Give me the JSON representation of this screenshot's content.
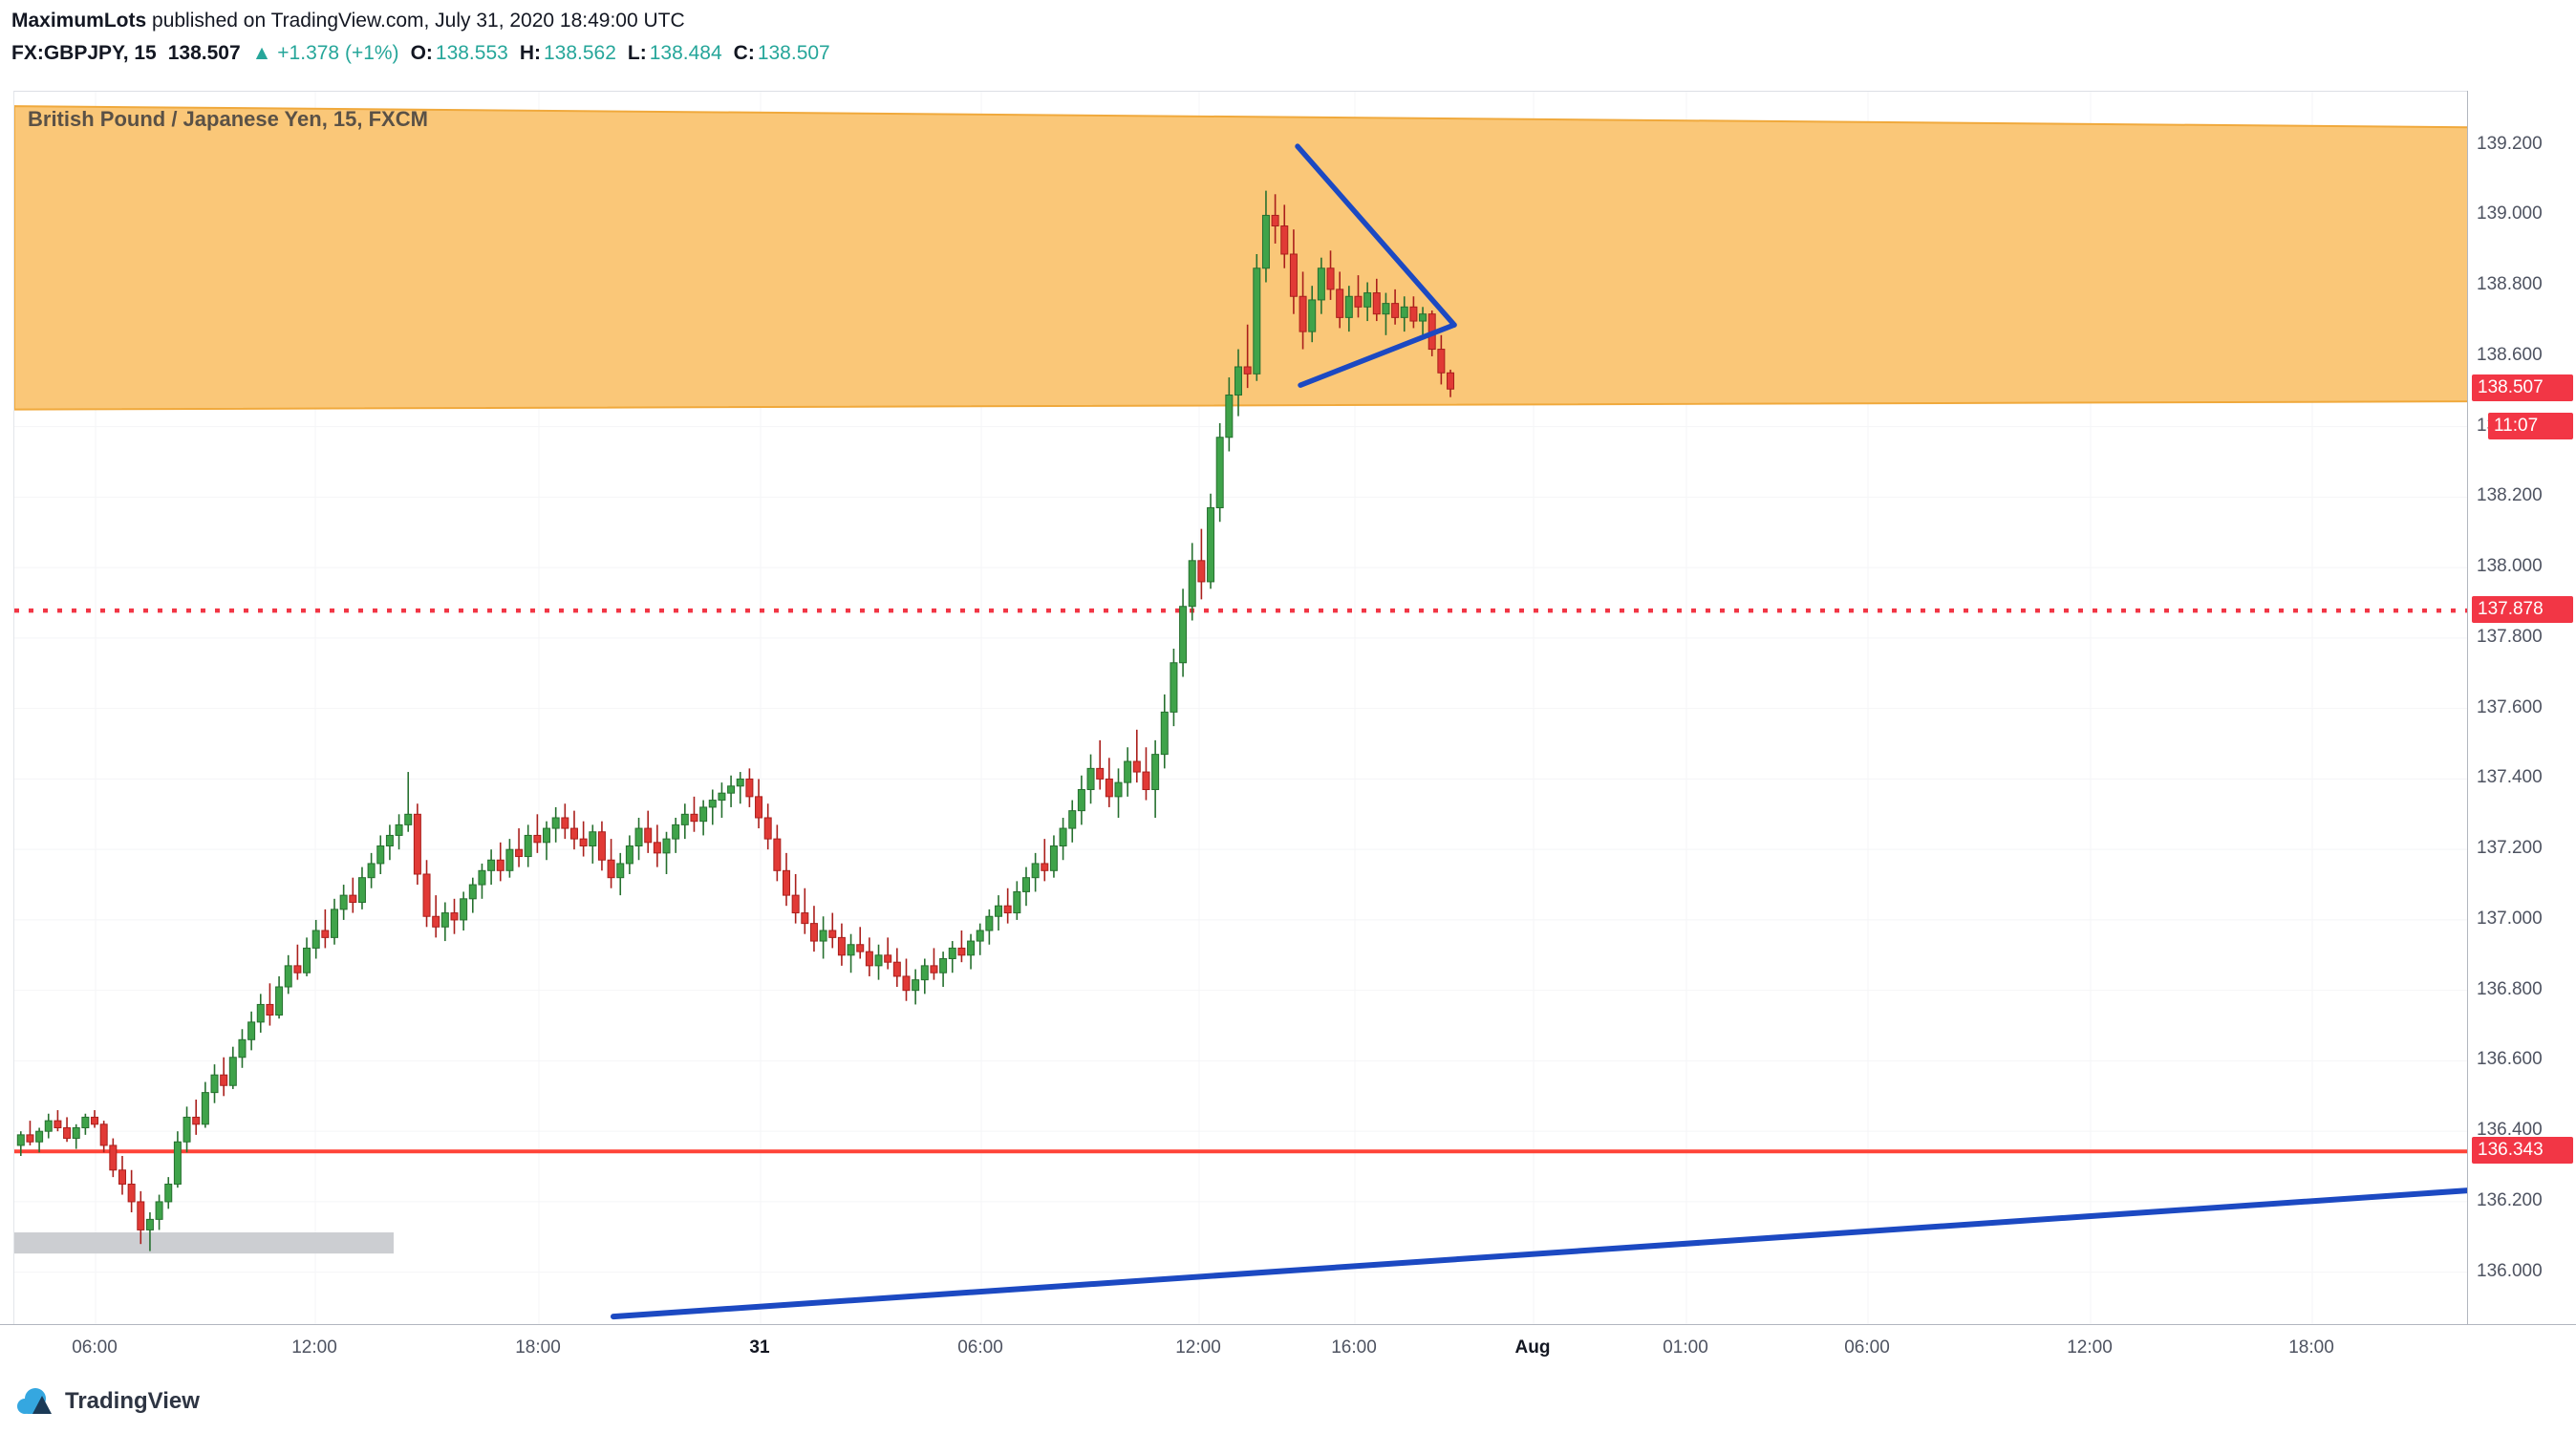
{
  "header": {
    "author": "MaximumLots",
    "published_suffix": " published on TradingView.com, July 31, 2020 18:49:00 UTC"
  },
  "legend": {
    "symbol": "FX:GBPJPY, 15",
    "last": "138.507",
    "direction_arrow": "▲",
    "change": "+1.378 (+1%)",
    "ohlc": [
      {
        "label": "O:",
        "value": "138.553"
      },
      {
        "label": "H:",
        "value": "138.562"
      },
      {
        "label": "L:",
        "value": "138.484"
      },
      {
        "label": "C:",
        "value": "138.507"
      }
    ]
  },
  "watermark": "British Pound / Japanese Yen, 15, FXCM",
  "footer": {
    "brand": "TradingView"
  },
  "colors": {
    "up": "#3fa34a",
    "up_border": "#26702f",
    "down": "#e13a36",
    "down_border": "#aa1f1c",
    "red": "#f23645",
    "red_solid": "#ff4438",
    "blue": "#1c49c2",
    "zone_fill": "#fac778",
    "zone_edge": "#f0a93c",
    "gray_box": "#c7c9cd",
    "grid": "#f4f5f7",
    "label_bg": "#f23645"
  },
  "price_axis": {
    "last_price_label": "138.507",
    "last_price_value": 138.507,
    "countdown": "11:07",
    "countdown_anchor_price": 138.4,
    "levels": [
      {
        "label": "137.878",
        "price": 137.878,
        "style": "dotted"
      },
      {
        "label": "136.343",
        "price": 136.343,
        "style": "solid"
      }
    ],
    "ticks": [
      {
        "label": "139.200",
        "price": 139.2
      },
      {
        "label": "139.000",
        "price": 139.0
      },
      {
        "label": "138.800",
        "price": 138.8
      },
      {
        "label": "138.600",
        "price": 138.6
      },
      {
        "label": "138.400",
        "price": 138.4
      },
      {
        "label": "138.200",
        "price": 138.2
      },
      {
        "label": "138.000",
        "price": 138.0
      },
      {
        "label": "137.800",
        "price": 137.8
      },
      {
        "label": "137.600",
        "price": 137.6
      },
      {
        "label": "137.400",
        "price": 137.4
      },
      {
        "label": "137.200",
        "price": 137.2
      },
      {
        "label": "137.000",
        "price": 137.0
      },
      {
        "label": "136.800",
        "price": 136.8
      },
      {
        "label": "136.600",
        "price": 136.6
      },
      {
        "label": "136.400",
        "price": 136.4
      },
      {
        "label": "136.200",
        "price": 136.2
      },
      {
        "label": "136.000",
        "price": 136.0
      }
    ]
  },
  "time_axis": {
    "ticks": [
      {
        "label": "06:00",
        "x": 99,
        "bold": false
      },
      {
        "label": "12:00",
        "x": 329,
        "bold": false
      },
      {
        "label": "18:00",
        "x": 563,
        "bold": false
      },
      {
        "label": "31",
        "x": 795,
        "bold": true
      },
      {
        "label": "06:00",
        "x": 1026,
        "bold": false
      },
      {
        "label": "12:00",
        "x": 1254,
        "bold": false
      },
      {
        "label": "16:00",
        "x": 1417,
        "bold": false
      },
      {
        "label": "Aug",
        "x": 1604,
        "bold": true
      },
      {
        "label": "01:00",
        "x": 1764,
        "bold": false
      },
      {
        "label": "06:00",
        "x": 1954,
        "bold": false
      },
      {
        "label": "12:00",
        "x": 2187,
        "bold": false
      },
      {
        "label": "18:00",
        "x": 2419,
        "bold": false
      }
    ]
  },
  "chart_data": {
    "type": "candlestick",
    "title": "British Pound / Japanese Yen, 15, FXCM",
    "symbol": "FX:GBPJPY",
    "interval": "15 minutes",
    "price_range_top": 139.351,
    "price_range_bottom": 135.85,
    "ylim": [
      135.85,
      139.351
    ],
    "grid": true,
    "legend_position": "top-left",
    "layout": {
      "x0": 3.3,
      "step": 9.653,
      "body_width": 7
    },
    "candles": [
      [
        136.36,
        136.4,
        136.33,
        136.39
      ],
      [
        136.39,
        136.43,
        136.36,
        136.37
      ],
      [
        136.37,
        136.41,
        136.34,
        136.4
      ],
      [
        136.4,
        136.45,
        136.38,
        136.43
      ],
      [
        136.43,
        136.46,
        136.4,
        136.41
      ],
      [
        136.41,
        136.44,
        136.37,
        136.38
      ],
      [
        136.38,
        136.42,
        136.35,
        136.41
      ],
      [
        136.41,
        136.45,
        136.39,
        136.44
      ],
      [
        136.44,
        136.46,
        136.41,
        136.42
      ],
      [
        136.42,
        136.43,
        136.34,
        136.36
      ],
      [
        136.36,
        136.38,
        136.27,
        136.29
      ],
      [
        136.29,
        136.33,
        136.22,
        136.25
      ],
      [
        136.25,
        136.29,
        136.17,
        136.2
      ],
      [
        136.2,
        136.23,
        136.08,
        136.12
      ],
      [
        136.12,
        136.17,
        136.06,
        136.15
      ],
      [
        136.15,
        136.22,
        136.12,
        136.2
      ],
      [
        136.2,
        136.27,
        136.18,
        136.25
      ],
      [
        136.25,
        136.4,
        136.24,
        136.37
      ],
      [
        136.37,
        136.47,
        136.34,
        136.44
      ],
      [
        136.44,
        136.49,
        136.39,
        136.42
      ],
      [
        136.42,
        136.54,
        136.41,
        136.51
      ],
      [
        136.51,
        136.59,
        136.48,
        136.56
      ],
      [
        136.56,
        136.61,
        136.5,
        136.53
      ],
      [
        136.53,
        136.64,
        136.52,
        136.61
      ],
      [
        136.61,
        136.69,
        136.58,
        136.66
      ],
      [
        136.66,
        136.74,
        136.63,
        136.71
      ],
      [
        136.71,
        136.79,
        136.68,
        136.76
      ],
      [
        136.76,
        136.82,
        136.7,
        136.73
      ],
      [
        136.73,
        136.84,
        136.72,
        136.81
      ],
      [
        136.81,
        136.9,
        136.79,
        136.87
      ],
      [
        136.87,
        136.93,
        136.83,
        136.85
      ],
      [
        136.85,
        136.95,
        136.84,
        136.92
      ],
      [
        136.92,
        137.0,
        136.89,
        136.97
      ],
      [
        136.97,
        137.03,
        136.92,
        136.95
      ],
      [
        136.95,
        137.06,
        136.93,
        137.03
      ],
      [
        137.03,
        137.1,
        137.0,
        137.07
      ],
      [
        137.07,
        137.12,
        137.02,
        137.05
      ],
      [
        137.05,
        137.15,
        137.03,
        137.12
      ],
      [
        137.12,
        137.19,
        137.09,
        137.16
      ],
      [
        137.16,
        137.24,
        137.13,
        137.21
      ],
      [
        137.21,
        137.27,
        137.17,
        137.24
      ],
      [
        137.24,
        137.3,
        137.2,
        137.27
      ],
      [
        137.27,
        137.42,
        137.25,
        137.3
      ],
      [
        137.3,
        137.33,
        137.1,
        137.13
      ],
      [
        137.13,
        137.17,
        136.98,
        137.01
      ],
      [
        137.01,
        137.07,
        136.95,
        136.98
      ],
      [
        136.98,
        137.05,
        136.94,
        137.02
      ],
      [
        137.02,
        137.06,
        136.96,
        137.0
      ],
      [
        137.0,
        137.08,
        136.97,
        137.06
      ],
      [
        137.06,
        137.12,
        137.02,
        137.1
      ],
      [
        137.1,
        137.16,
        137.06,
        137.14
      ],
      [
        137.14,
        137.2,
        137.1,
        137.17
      ],
      [
        137.17,
        137.22,
        137.11,
        137.14
      ],
      [
        137.14,
        137.23,
        137.12,
        137.2
      ],
      [
        137.2,
        137.26,
        137.15,
        137.18
      ],
      [
        137.18,
        137.27,
        137.15,
        137.24
      ],
      [
        137.24,
        137.3,
        137.19,
        137.22
      ],
      [
        137.22,
        137.28,
        137.17,
        137.26
      ],
      [
        137.26,
        137.32,
        137.22,
        137.29
      ],
      [
        137.29,
        137.33,
        137.23,
        137.26
      ],
      [
        137.26,
        137.31,
        137.2,
        137.23
      ],
      [
        137.23,
        137.28,
        137.18,
        137.21
      ],
      [
        137.21,
        137.27,
        137.16,
        137.25
      ],
      [
        137.25,
        137.28,
        137.14,
        137.17
      ],
      [
        137.17,
        137.23,
        137.09,
        137.12
      ],
      [
        137.12,
        137.19,
        137.07,
        137.16
      ],
      [
        137.16,
        137.24,
        137.13,
        137.21
      ],
      [
        137.21,
        137.29,
        137.17,
        137.26
      ],
      [
        137.26,
        137.31,
        137.19,
        137.22
      ],
      [
        137.22,
        137.27,
        137.15,
        137.19
      ],
      [
        137.19,
        137.25,
        137.13,
        137.23
      ],
      [
        137.23,
        137.29,
        137.19,
        137.27
      ],
      [
        137.27,
        137.33,
        137.23,
        137.3
      ],
      [
        137.3,
        137.35,
        137.25,
        137.28
      ],
      [
        137.28,
        137.34,
        137.24,
        137.32
      ],
      [
        137.32,
        137.37,
        137.27,
        137.34
      ],
      [
        137.34,
        137.39,
        137.29,
        137.36
      ],
      [
        137.36,
        137.41,
        137.32,
        137.38
      ],
      [
        137.38,
        137.42,
        137.33,
        137.4
      ],
      [
        137.4,
        137.43,
        137.32,
        137.35
      ],
      [
        137.35,
        137.4,
        137.26,
        137.29
      ],
      [
        137.29,
        137.33,
        137.2,
        137.23
      ],
      [
        137.23,
        137.27,
        137.11,
        137.14
      ],
      [
        137.14,
        137.19,
        137.04,
        137.07
      ],
      [
        137.07,
        137.13,
        136.99,
        137.02
      ],
      [
        137.02,
        137.09,
        136.96,
        136.99
      ],
      [
        136.99,
        137.04,
        136.91,
        136.94
      ],
      [
        136.94,
        137.01,
        136.89,
        136.97
      ],
      [
        136.97,
        137.02,
        136.92,
        136.95
      ],
      [
        136.95,
        136.99,
        136.87,
        136.9
      ],
      [
        136.9,
        136.96,
        136.85,
        136.93
      ],
      [
        136.93,
        136.98,
        136.89,
        136.91
      ],
      [
        136.91,
        136.95,
        136.84,
        136.87
      ],
      [
        136.87,
        136.93,
        136.83,
        136.9
      ],
      [
        136.9,
        136.95,
        136.86,
        136.88
      ],
      [
        136.88,
        136.92,
        136.81,
        136.84
      ],
      [
        136.84,
        136.89,
        136.77,
        136.8
      ],
      [
        136.8,
        136.86,
        136.76,
        136.83
      ],
      [
        136.83,
        136.89,
        136.79,
        136.87
      ],
      [
        136.87,
        136.92,
        136.83,
        136.85
      ],
      [
        136.85,
        136.91,
        136.81,
        136.89
      ],
      [
        136.89,
        136.94,
        136.85,
        136.92
      ],
      [
        136.92,
        136.97,
        136.88,
        136.9
      ],
      [
        136.9,
        136.96,
        136.86,
        136.94
      ],
      [
        136.94,
        136.99,
        136.9,
        136.97
      ],
      [
        136.97,
        137.03,
        136.93,
        137.01
      ],
      [
        137.01,
        137.07,
        136.97,
        137.04
      ],
      [
        137.04,
        137.09,
        136.99,
        137.02
      ],
      [
        137.02,
        137.11,
        137.0,
        137.08
      ],
      [
        137.08,
        137.15,
        137.04,
        137.12
      ],
      [
        137.12,
        137.19,
        137.08,
        137.16
      ],
      [
        137.16,
        137.23,
        137.11,
        137.14
      ],
      [
        137.14,
        137.24,
        137.12,
        137.21
      ],
      [
        137.21,
        137.29,
        137.17,
        137.26
      ],
      [
        137.26,
        137.34,
        137.22,
        137.31
      ],
      [
        137.31,
        137.41,
        137.27,
        137.37
      ],
      [
        137.37,
        137.47,
        137.33,
        137.43
      ],
      [
        137.43,
        137.51,
        137.37,
        137.4
      ],
      [
        137.4,
        137.46,
        137.32,
        137.35
      ],
      [
        137.35,
        137.43,
        137.29,
        137.39
      ],
      [
        137.39,
        137.49,
        137.35,
        137.45
      ],
      [
        137.45,
        137.54,
        137.39,
        137.42
      ],
      [
        137.42,
        137.49,
        137.34,
        137.37
      ],
      [
        137.37,
        137.51,
        137.29,
        137.47
      ],
      [
        137.47,
        137.64,
        137.43,
        137.59
      ],
      [
        137.59,
        137.77,
        137.55,
        137.73
      ],
      [
        137.73,
        137.94,
        137.69,
        137.89
      ],
      [
        137.89,
        138.07,
        137.85,
        138.02
      ],
      [
        138.02,
        138.11,
        137.91,
        137.96
      ],
      [
        137.96,
        138.21,
        137.94,
        138.17
      ],
      [
        138.17,
        138.41,
        138.13,
        138.37
      ],
      [
        138.37,
        138.54,
        138.33,
        138.49
      ],
      [
        138.49,
        138.62,
        138.43,
        138.57
      ],
      [
        138.57,
        138.69,
        138.51,
        138.55
      ],
      [
        138.55,
        138.89,
        138.53,
        138.85
      ],
      [
        138.85,
        139.07,
        138.81,
        139.0
      ],
      [
        139.0,
        139.06,
        138.92,
        138.97
      ],
      [
        138.97,
        139.03,
        138.85,
        138.89
      ],
      [
        138.89,
        138.96,
        138.72,
        138.77
      ],
      [
        138.77,
        138.84,
        138.62,
        138.67
      ],
      [
        138.67,
        138.8,
        138.64,
        138.76
      ],
      [
        138.76,
        138.88,
        138.72,
        138.85
      ],
      [
        138.85,
        138.9,
        138.76,
        138.79
      ],
      [
        138.79,
        138.84,
        138.68,
        138.71
      ],
      [
        138.71,
        138.8,
        138.67,
        138.77
      ],
      [
        138.77,
        138.83,
        138.71,
        138.74
      ],
      [
        138.74,
        138.81,
        138.7,
        138.78
      ],
      [
        138.78,
        138.82,
        138.7,
        138.72
      ],
      [
        138.72,
        138.78,
        138.66,
        138.75
      ],
      [
        138.75,
        138.79,
        138.69,
        138.71
      ],
      [
        138.71,
        138.77,
        138.67,
        138.74
      ],
      [
        138.74,
        138.77,
        138.68,
        138.7
      ],
      [
        138.7,
        138.74,
        138.66,
        138.72
      ],
      [
        138.72,
        138.73,
        138.6,
        138.62
      ],
      [
        138.62,
        138.66,
        138.52,
        138.553
      ],
      [
        138.553,
        138.562,
        138.484,
        138.507
      ]
    ],
    "annotations": {
      "zone": {
        "p_top_left": 139.31,
        "p_top_right": 139.25,
        "p_bottom_right": 138.472,
        "p_bottom_left": 138.449
      },
      "dotted_level": 137.878,
      "solid_level": 136.343,
      "trendline": {
        "x1": 627,
        "p1": 135.874,
        "x2": 2568,
        "p2": 136.232
      },
      "triangle": [
        {
          "x1": 1343,
          "p1": 139.196,
          "x2": 1507,
          "p2": 138.689
        },
        {
          "x1": 1346,
          "p1": 138.518,
          "x2": 1507,
          "p2": 138.689
        }
      ],
      "gray_box": {
        "x1": 0,
        "x2": 397,
        "p_top": 136.113,
        "p_bottom": 136.053
      }
    }
  }
}
